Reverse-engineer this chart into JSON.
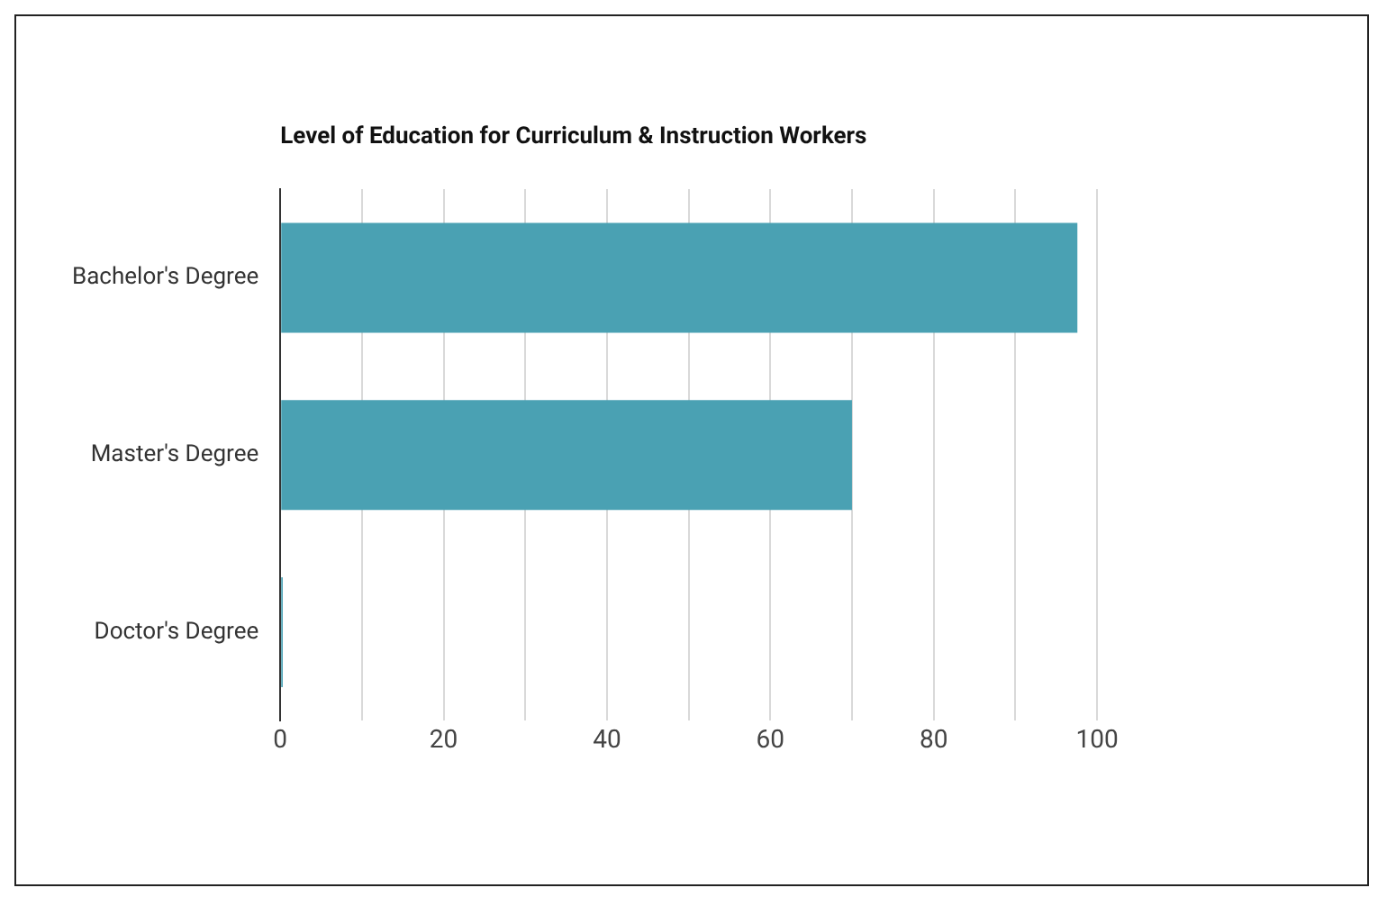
{
  "chart_data": {
    "type": "bar",
    "orientation": "horizontal",
    "title": "Level of Education for Curriculum & Instruction Workers",
    "categories": [
      "Bachelor's Degree",
      "Master's Degree",
      "Doctor's Degree"
    ],
    "values": [
      97.6,
      70,
      0.3
    ],
    "color": "#4aa1b3",
    "xlim": [
      0,
      100
    ],
    "xticks": [
      0,
      {
        "value": 10,
        "label": null
      },
      20,
      {
        "value": 30,
        "label": null
      },
      40,
      {
        "value": 50,
        "label": null
      },
      60,
      {
        "value": 70,
        "label": null
      },
      80,
      {
        "value": 90,
        "label": null
      },
      100
    ],
    "grid": "x"
  }
}
